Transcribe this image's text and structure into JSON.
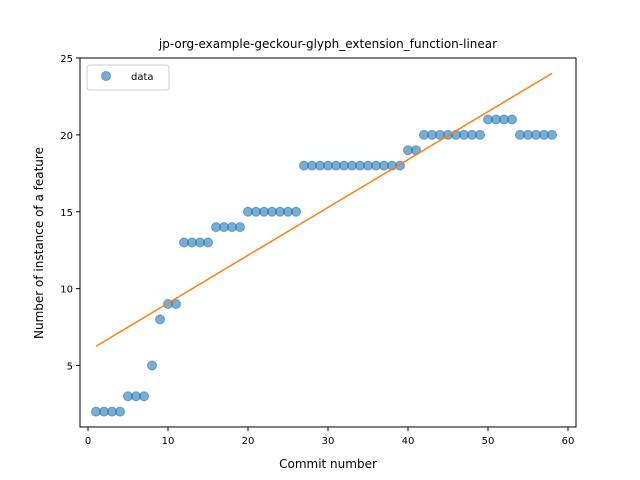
{
  "chart_data": {
    "type": "scatter",
    "title": "jp-org-example-geckour-glyph_extension_function-linear",
    "xlabel": "Commit number",
    "ylabel": "Number of instance of a feature",
    "xlim": [
      -1,
      61
    ],
    "ylim": [
      1,
      25
    ],
    "xticks": [
      0,
      10,
      20,
      30,
      40,
      50,
      60
    ],
    "yticks": [
      5,
      10,
      15,
      20,
      25
    ],
    "grid": false,
    "legend": {
      "position": "top-left",
      "entries": [
        "data"
      ]
    },
    "colors": {
      "data": "#1f77b4",
      "fit": "#ff7f0e"
    },
    "series": [
      {
        "name": "data",
        "kind": "scatter",
        "x": [
          1,
          2,
          3,
          4,
          5,
          6,
          7,
          8,
          9,
          10,
          11,
          12,
          13,
          14,
          15,
          16,
          17,
          18,
          19,
          20,
          21,
          22,
          23,
          24,
          25,
          26,
          27,
          28,
          29,
          30,
          31,
          32,
          33,
          34,
          35,
          36,
          37,
          38,
          39,
          40,
          41,
          42,
          43,
          44,
          45,
          46,
          47,
          48,
          49,
          50,
          51,
          52,
          53,
          54,
          55,
          56,
          57,
          58
        ],
        "y": [
          2,
          2,
          2,
          2,
          3,
          3,
          3,
          5,
          8,
          9,
          9,
          13,
          13,
          13,
          13,
          14,
          14,
          14,
          14,
          15,
          15,
          15,
          15,
          15,
          15,
          15,
          18,
          18,
          18,
          18,
          18,
          18,
          18,
          18,
          18,
          18,
          18,
          18,
          18,
          19,
          19,
          20,
          20,
          20,
          20,
          20,
          20,
          20,
          20,
          21,
          21,
          21,
          21,
          20,
          20,
          20,
          20,
          20
        ]
      },
      {
        "kind": "line",
        "x": [
          1,
          58
        ],
        "y": [
          6.25,
          24.0
        ]
      }
    ]
  }
}
